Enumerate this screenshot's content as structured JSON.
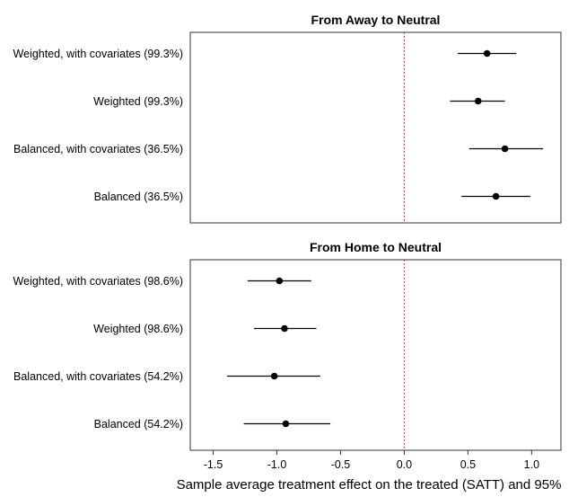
{
  "chart_data": {
    "type": "scatter",
    "xlabel": "Sample average treatment effect on the treated (SATT) and 95%",
    "xlim": [
      -1.68,
      1.23
    ],
    "xticks": [
      -1.5,
      -1.0,
      -0.5,
      0.0,
      0.5,
      1.0
    ],
    "xtick_labels": [
      "-1.5",
      "-1.0",
      "-0.5",
      "0.0",
      "0.5",
      "1.0"
    ],
    "reference_line": 0.0,
    "reference_color": "#cc0000",
    "panels": [
      {
        "title": "From Away to Neutral",
        "rows": [
          {
            "label": "Weighted, with covariates (99.3%)",
            "estimate": 0.65,
            "lower": 0.42,
            "upper": 0.88
          },
          {
            "label": "Weighted (99.3%)",
            "estimate": 0.58,
            "lower": 0.36,
            "upper": 0.79
          },
          {
            "label": "Balanced, with covariates (36.5%)",
            "estimate": 0.79,
            "lower": 0.51,
            "upper": 1.09
          },
          {
            "label": "Balanced (36.5%)",
            "estimate": 0.72,
            "lower": 0.45,
            "upper": 0.99
          }
        ]
      },
      {
        "title": "From Home to Neutral",
        "rows": [
          {
            "label": "Weighted, with covariates (98.6%)",
            "estimate": -0.98,
            "lower": -1.23,
            "upper": -0.73
          },
          {
            "label": "Weighted (98.6%)",
            "estimate": -0.94,
            "lower": -1.18,
            "upper": -0.69
          },
          {
            "label": "Balanced, with covariates (54.2%)",
            "estimate": -1.02,
            "lower": -1.39,
            "upper": -0.66
          },
          {
            "label": "Balanced (54.2%)",
            "estimate": -0.93,
            "lower": -1.26,
            "upper": -0.58
          }
        ]
      }
    ]
  }
}
